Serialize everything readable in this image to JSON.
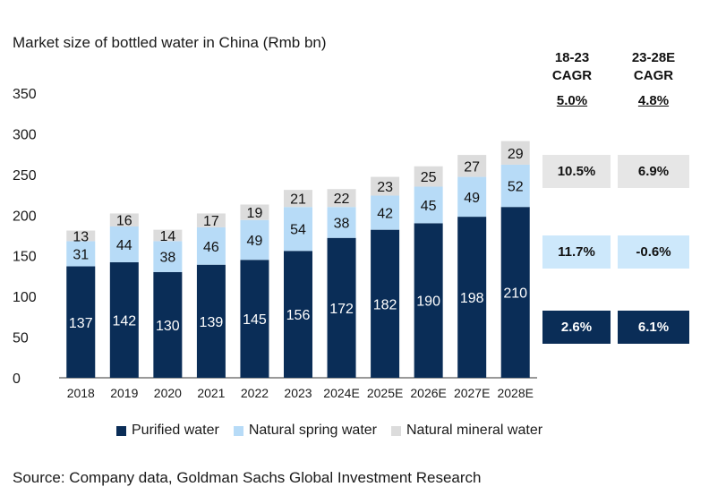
{
  "chart_data": {
    "type": "bar",
    "stacked": true,
    "title": "Market size of bottled water in China (Rmb  bn)",
    "categories": [
      "2018",
      "2019",
      "2020",
      "2021",
      "2022",
      "2023",
      "2024E",
      "2025E",
      "2026E",
      "2027E",
      "2028E"
    ],
    "series": [
      {
        "name": "Purified water",
        "color": "#0a2d57",
        "label_color": "#ffffff",
        "values": [
          137,
          142,
          130,
          139,
          145,
          156,
          172,
          182,
          190,
          198,
          210
        ]
      },
      {
        "name": "Natural spring water",
        "color": "#b7dbf7",
        "label_color": "#111111",
        "values": [
          31,
          44,
          38,
          46,
          49,
          54,
          38,
          42,
          45,
          49,
          52
        ]
      },
      {
        "name": "Natural mineral water",
        "color": "#dcdcdc",
        "label_color": "#111111",
        "values": [
          13,
          16,
          14,
          17,
          19,
          21,
          22,
          23,
          25,
          27,
          29
        ]
      }
    ],
    "ylim": [
      0,
      350
    ],
    "yticks": [
      0,
      50,
      100,
      150,
      200,
      250,
      300,
      350
    ],
    "grid": false,
    "legend_position": "bottom"
  },
  "cagr_table": {
    "columns": [
      {
        "title_line1": "18-23",
        "title_line2": "CAGR",
        "total": "5.0%"
      },
      {
        "title_line1": "23-28E",
        "title_line2": "CAGR",
        "total": "4.8%"
      }
    ],
    "rows": [
      {
        "series": "Natural mineral water",
        "values": [
          "10.5%",
          "6.9%"
        ]
      },
      {
        "series": "Natural spring water",
        "values": [
          "11.7%",
          "-0.6%"
        ]
      },
      {
        "series": "Purified water",
        "values": [
          "2.6%",
          "6.1%"
        ]
      }
    ]
  },
  "legend": [
    "Purified water",
    "Natural spring water",
    "Natural mineral water"
  ],
  "source": "Source: Company data, Goldman Sachs Global Investment Research"
}
